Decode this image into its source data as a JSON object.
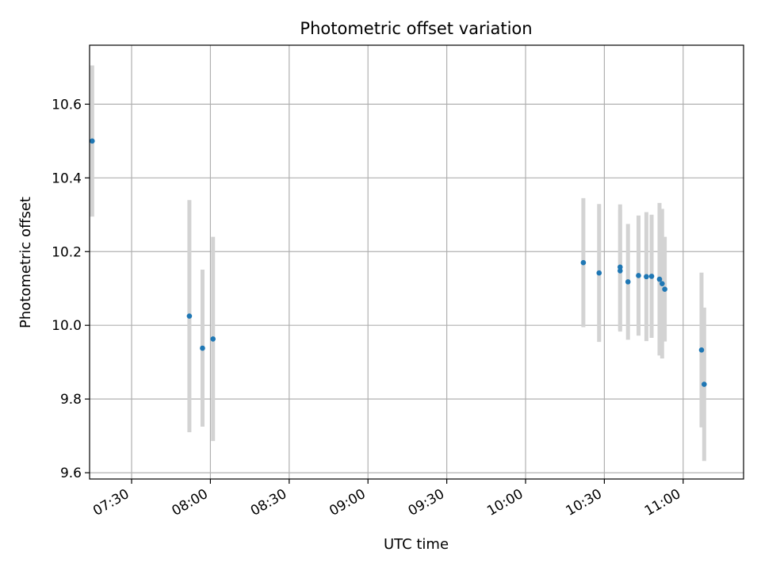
{
  "chart_data": {
    "type": "scatter",
    "title": "Photometric offset variation",
    "xlabel": "UTC time",
    "ylabel": "Photometric offset",
    "grid": true,
    "xlim": [
      "07:14",
      "11:23"
    ],
    "ylim": [
      9.583,
      10.76
    ],
    "x_ticks": [
      "07:30",
      "08:00",
      "08:30",
      "09:00",
      "09:30",
      "10:00",
      "10:30",
      "11:00"
    ],
    "y_ticks": [
      9.6,
      9.8,
      10.0,
      10.2,
      10.4,
      10.6
    ],
    "y_tick_labels": [
      "9.6",
      "9.8",
      "10.0",
      "10.2",
      "10.4",
      "10.6"
    ],
    "colors": {
      "marker": "#1f77b4",
      "errorbar": "#d3d3d3"
    },
    "series": [
      {
        "points": [
          {
            "x": "07:15",
            "y": 10.5,
            "err": 0.205
          },
          {
            "x": "07:52",
            "y": 10.025,
            "err": 0.315
          },
          {
            "x": "07:57",
            "y": 9.938,
            "err": 0.213
          },
          {
            "x": "08:01",
            "y": 9.963,
            "err": 0.277
          },
          {
            "x": "10:22",
            "y": 10.17,
            "err": 0.175
          },
          {
            "x": "10:28",
            "y": 10.142,
            "err": 0.187
          },
          {
            "x": "10:36",
            "y": 10.158,
            "err": 0.17
          },
          {
            "x": "10:36",
            "y": 10.148,
            "err": 0.165
          },
          {
            "x": "10:39",
            "y": 10.118,
            "err": 0.157
          },
          {
            "x": "10:43",
            "y": 10.135,
            "err": 0.163
          },
          {
            "x": "10:46",
            "y": 10.132,
            "err": 0.175
          },
          {
            "x": "10:48",
            "y": 10.133,
            "err": 0.167
          },
          {
            "x": "10:51",
            "y": 10.125,
            "err": 0.207
          },
          {
            "x": "10:52",
            "y": 10.113,
            "err": 0.203
          },
          {
            "x": "10:53",
            "y": 10.098,
            "err": 0.142
          },
          {
            "x": "11:07",
            "y": 9.933,
            "err": 0.21
          },
          {
            "x": "11:08",
            "y": 9.84,
            "err": 0.208
          }
        ]
      }
    ]
  }
}
